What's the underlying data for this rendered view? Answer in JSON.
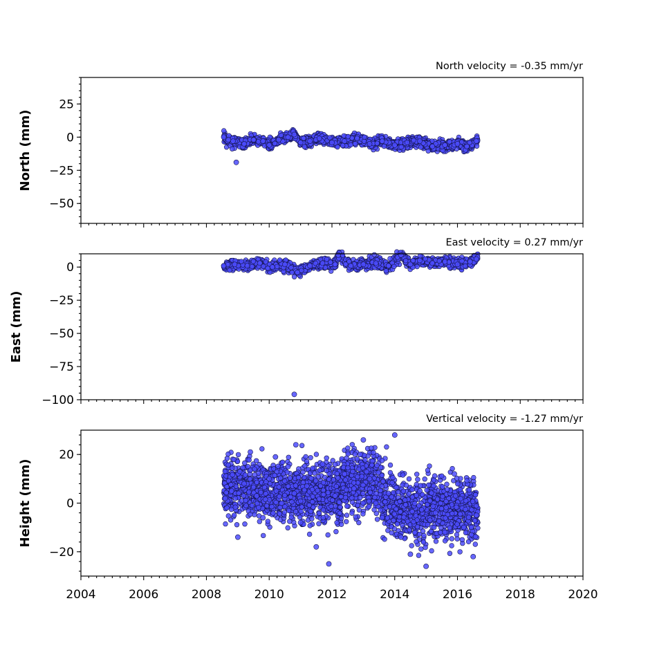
{
  "chart_data": [
    {
      "type": "scatter",
      "title": "North velocity = -0.35 mm/yr",
      "ylabel": "North (mm)",
      "xlim": [
        2004,
        2020
      ],
      "ylim": [
        -65,
        45
      ],
      "yticks": [
        25,
        0,
        -25,
        -50
      ],
      "yticklabels": [
        "25",
        "0",
        "−25",
        "−50"
      ],
      "series": [
        {
          "x": [
            2008.55,
            2008.7,
            2008.85,
            2008.95,
            2009.2,
            2009.5,
            2009.8,
            2010.0,
            2010.3,
            2010.6,
            2010.8,
            2011.0,
            2011.3,
            2011.6,
            2012.0,
            2012.4,
            2012.8,
            2013.2,
            2013.6,
            2014.0,
            2014.4,
            2014.8,
            2015.2,
            2015.6,
            2016.0,
            2016.3,
            2016.6
          ],
          "y": [
            0,
            -2,
            -3,
            -19,
            -5,
            -2,
            -3,
            -6,
            -2,
            0,
            2,
            -4,
            -3,
            -1,
            -4,
            -3,
            -1,
            -5,
            -3,
            -6,
            -4,
            -3,
            -7,
            -6,
            -5,
            -7,
            -3
          ]
        }
      ]
    },
    {
      "type": "scatter",
      "title": "East velocity = 0.27 mm/yr",
      "ylabel": "East (mm)",
      "xlim": [
        2004,
        2020
      ],
      "ylim": [
        -100,
        10
      ],
      "yticks": [
        0,
        -25,
        -50,
        -75,
        -100
      ],
      "yticklabels": [
        "0",
        "−25",
        "−50",
        "−75",
        "−100"
      ],
      "series": [
        {
          "x": [
            2008.55,
            2008.9,
            2009.3,
            2009.7,
            2010.1,
            2010.5,
            2010.8,
            2010.9,
            2011.3,
            2011.7,
            2012.1,
            2012.2,
            2012.6,
            2013.0,
            2013.4,
            2013.8,
            2014.2,
            2014.5,
            2014.8,
            2015.2,
            2015.6,
            2016.0,
            2016.4,
            2016.6
          ],
          "y": [
            1,
            2,
            1,
            3,
            0,
            2,
            -96,
            -4,
            1,
            3,
            2,
            9,
            1,
            2,
            3,
            1,
            9,
            2,
            5,
            3,
            4,
            2,
            4,
            6
          ]
        }
      ]
    },
    {
      "type": "scatter",
      "title": "Vertical velocity = -1.27 mm/yr",
      "ylabel": "Height (mm)",
      "xlabel": "",
      "xlim": [
        2004,
        2020
      ],
      "ylim": [
        -30,
        30
      ],
      "yticks": [
        20,
        0,
        -20
      ],
      "yticklabels": [
        "20",
        "0",
        "−20"
      ],
      "xticks": [
        2004,
        2006,
        2008,
        2010,
        2012,
        2014,
        2016,
        2018,
        2020
      ],
      "xticklabels": [
        "2004",
        "2006",
        "2008",
        "2010",
        "2012",
        "2014",
        "2016",
        "2018",
        "2020"
      ],
      "series": [
        {
          "x": [
            2008.6,
            2008.8,
            2009.0,
            2009.2,
            2009.4,
            2009.6,
            2009.8,
            2010.0,
            2010.2,
            2010.4,
            2010.6,
            2010.8,
            2010.85,
            2011.0,
            2011.2,
            2011.5,
            2011.7,
            2011.9,
            2012.1,
            2012.4,
            2012.7,
            2012.9,
            2013.0,
            2013.2,
            2013.4,
            2013.6,
            2013.8,
            2014.0,
            2014.2,
            2014.5,
            2014.8,
            2015.0,
            2015.3,
            2015.6,
            2015.9,
            2016.2,
            2016.5,
            2016.6
          ],
          "y": [
            2,
            5,
            -14,
            8,
            21,
            3,
            -6,
            10,
            19,
            0,
            15,
            4,
            24,
            -8,
            7,
            -18,
            16,
            -25,
            3,
            12,
            6,
            20,
            26,
            10,
            0,
            -6,
            4,
            28,
            -14,
            -21,
            5,
            -26,
            -4,
            -12,
            12,
            -10,
            -22,
            -5
          ]
        }
      ]
    }
  ],
  "colors": {
    "marker": "#4c4cff",
    "marker_edge": "#14144a",
    "frame": "#000000"
  }
}
